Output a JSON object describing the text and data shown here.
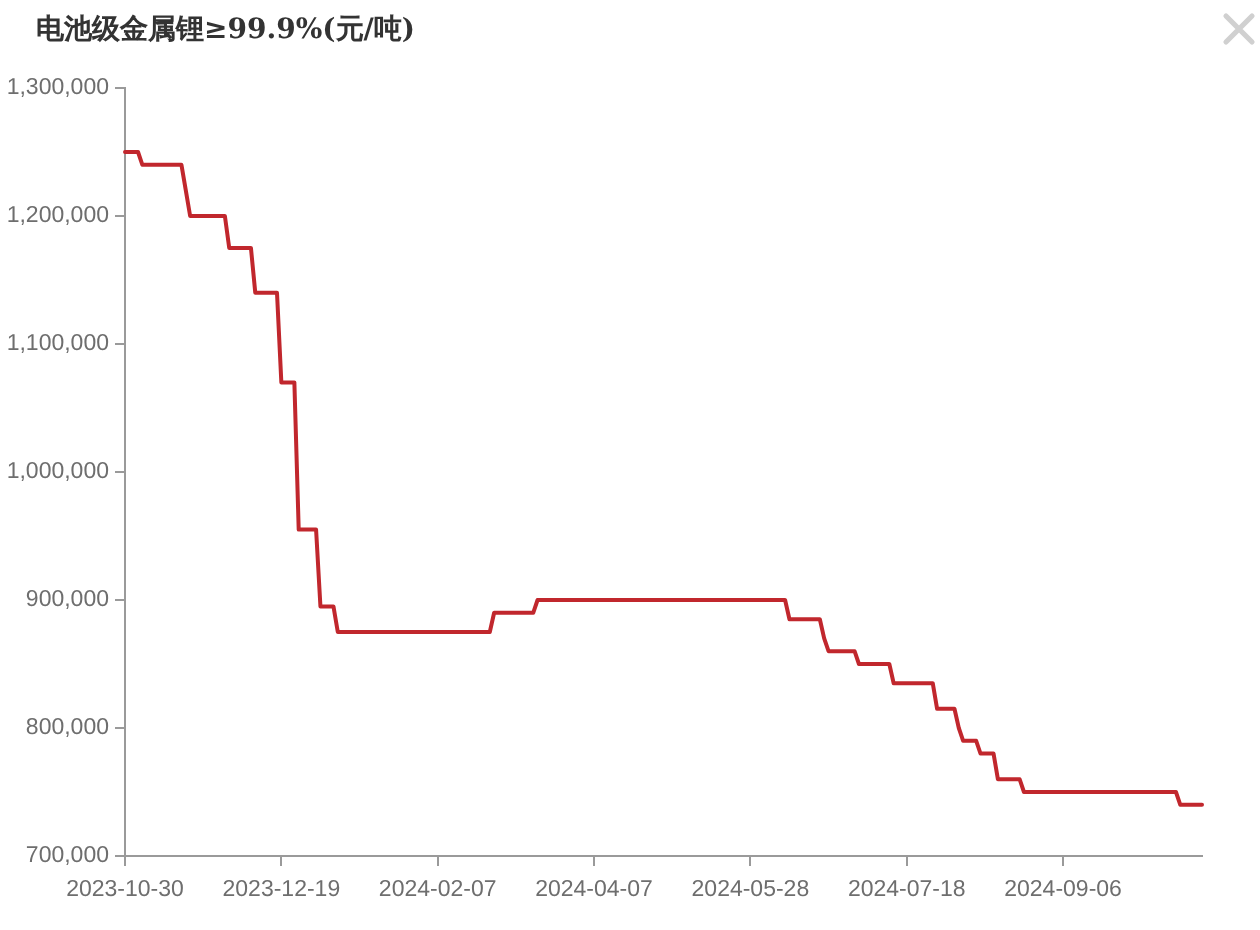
{
  "chart_data": {
    "type": "line",
    "title": "电池级金属锂≥99.9%(元/吨)",
    "categories": [
      "2023-10-30",
      null,
      null,
      null,
      null,
      null,
      null,
      null,
      null,
      null,
      null,
      null,
      null,
      null,
      null,
      null,
      null,
      null,
      null,
      null,
      null,
      null,
      null,
      null,
      null,
      null,
      null,
      null,
      null,
      null,
      null,
      null,
      null,
      null,
      null,
      null,
      "2023-12-19",
      null,
      null,
      null,
      null,
      null,
      null,
      null,
      null,
      null,
      null,
      null,
      null,
      null,
      null,
      null,
      null,
      null,
      null,
      null,
      null,
      null,
      null,
      null,
      null,
      null,
      null,
      null,
      null,
      null,
      null,
      null,
      null,
      null,
      null,
      null,
      "2024-02-07",
      null,
      null,
      null,
      null,
      null,
      null,
      null,
      null,
      null,
      null,
      null,
      null,
      null,
      null,
      null,
      null,
      null,
      null,
      null,
      null,
      null,
      null,
      null,
      null,
      null,
      null,
      null,
      null,
      null,
      null,
      null,
      null,
      null,
      null,
      null,
      "2024-04-07",
      null,
      null,
      null,
      null,
      null,
      null,
      null,
      null,
      null,
      null,
      null,
      null,
      null,
      null,
      null,
      null,
      null,
      null,
      null,
      null,
      null,
      null,
      null,
      null,
      null,
      null,
      null,
      null,
      null,
      null,
      null,
      null,
      null,
      null,
      null,
      "2024-05-28",
      null,
      null,
      null,
      null,
      null,
      null,
      null,
      null,
      null,
      null,
      null,
      null,
      null,
      null,
      null,
      null,
      null,
      null,
      null,
      null,
      null,
      null,
      null,
      null,
      null,
      null,
      null,
      null,
      null,
      null,
      null,
      null,
      null,
      null,
      null,
      "2024-07-18",
      null,
      null,
      null,
      null,
      null,
      null,
      null,
      null,
      null,
      null,
      null,
      null,
      null,
      null,
      null,
      null,
      null,
      null,
      null,
      null,
      null,
      null,
      null,
      null,
      null,
      null,
      null,
      null,
      null,
      null,
      null,
      null,
      null,
      null,
      null,
      "2024-09-06",
      null,
      null,
      null,
      null,
      null,
      null,
      null,
      null,
      null,
      null,
      null,
      null,
      null,
      null,
      null,
      null,
      null,
      null,
      null,
      null,
      null,
      null,
      null,
      null,
      null,
      null,
      null,
      null,
      null,
      null,
      null,
      null
    ],
    "values": [
      1250000,
      1250000,
      1250000,
      1250000,
      1240000,
      1240000,
      1240000,
      1240000,
      1240000,
      1240000,
      1240000,
      1240000,
      1240000,
      1240000,
      1220000,
      1200000,
      1200000,
      1200000,
      1200000,
      1200000,
      1200000,
      1200000,
      1200000,
      1200000,
      1175000,
      1175000,
      1175000,
      1175000,
      1175000,
      1175000,
      1140000,
      1140000,
      1140000,
      1140000,
      1140000,
      1140000,
      1070000,
      1070000,
      1070000,
      1070000,
      955000,
      955000,
      955000,
      955000,
      955000,
      895000,
      895000,
      895000,
      895000,
      875000,
      875000,
      875000,
      875000,
      875000,
      875000,
      875000,
      875000,
      875000,
      875000,
      875000,
      875000,
      875000,
      875000,
      875000,
      875000,
      875000,
      875000,
      875000,
      875000,
      875000,
      875000,
      875000,
      875000,
      875000,
      875000,
      875000,
      875000,
      875000,
      875000,
      875000,
      875000,
      875000,
      875000,
      875000,
      875000,
      890000,
      890000,
      890000,
      890000,
      890000,
      890000,
      890000,
      890000,
      890000,
      890000,
      900000,
      900000,
      900000,
      900000,
      900000,
      900000,
      900000,
      900000,
      900000,
      900000,
      900000,
      900000,
      900000,
      900000,
      900000,
      900000,
      900000,
      900000,
      900000,
      900000,
      900000,
      900000,
      900000,
      900000,
      900000,
      900000,
      900000,
      900000,
      900000,
      900000,
      900000,
      900000,
      900000,
      900000,
      900000,
      900000,
      900000,
      900000,
      900000,
      900000,
      900000,
      900000,
      900000,
      900000,
      900000,
      900000,
      900000,
      900000,
      900000,
      900000,
      900000,
      900000,
      900000,
      900000,
      900000,
      900000,
      900000,
      900000,
      885000,
      885000,
      885000,
      885000,
      885000,
      885000,
      885000,
      885000,
      870000,
      860000,
      860000,
      860000,
      860000,
      860000,
      860000,
      860000,
      850000,
      850000,
      850000,
      850000,
      850000,
      850000,
      850000,
      850000,
      835000,
      835000,
      835000,
      835000,
      835000,
      835000,
      835000,
      835000,
      835000,
      835000,
      815000,
      815000,
      815000,
      815000,
      815000,
      800000,
      790000,
      790000,
      790000,
      790000,
      780000,
      780000,
      780000,
      780000,
      760000,
      760000,
      760000,
      760000,
      760000,
      760000,
      750000,
      750000,
      750000,
      750000,
      750000,
      750000,
      750000,
      750000,
      750000,
      750000,
      750000,
      750000,
      750000,
      750000,
      750000,
      750000,
      750000,
      750000,
      750000,
      750000,
      750000,
      750000,
      750000,
      750000,
      750000,
      750000,
      750000,
      750000,
      750000,
      750000,
      750000,
      750000,
      750000,
      750000,
      750000,
      750000,
      740000,
      740000,
      740000,
      740000,
      740000,
      740000
    ],
    "color": "#c1272d",
    "ylim": [
      700000,
      1300000
    ],
    "yticks": [
      {
        "value": 700000,
        "label": "700,000"
      },
      {
        "value": 800000,
        "label": "800,000"
      },
      {
        "value": 900000,
        "label": "900,000"
      },
      {
        "value": 1000000,
        "label": "1,000,000"
      },
      {
        "value": 1100000,
        "label": "1,100,000"
      },
      {
        "value": 1200000,
        "label": "1,200,000"
      },
      {
        "value": 1300000,
        "label": "1,300,000"
      }
    ]
  }
}
